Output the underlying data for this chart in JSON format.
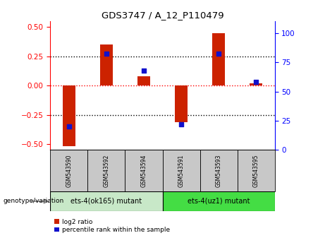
{
  "title": "GDS3747 / A_12_P110479",
  "samples": [
    "GSM543590",
    "GSM543592",
    "GSM543594",
    "GSM543591",
    "GSM543593",
    "GSM543595"
  ],
  "log2_ratio": [
    -0.52,
    0.35,
    0.08,
    -0.31,
    0.45,
    0.02
  ],
  "percentile_rank": [
    20,
    82,
    68,
    22,
    82,
    58
  ],
  "group1_label": "ets-4(ok165) mutant",
  "group2_label": "ets-4(uz1) mutant",
  "bar_color": "#cc2200",
  "dot_color": "#1111cc",
  "ylim_left": [
    -0.55,
    0.55
  ],
  "ylim_right": [
    0,
    110
  ],
  "yticks_left": [
    -0.5,
    -0.25,
    0,
    0.25,
    0.5
  ],
  "yticks_right": [
    0,
    25,
    50,
    75,
    100
  ],
  "sample_box_color": "#c8c8c8",
  "group1_color": "#c8e8c8",
  "group2_color": "#44dd44",
  "bar_width": 0.35,
  "legend_bar_label": "log2 ratio",
  "legend_dot_label": "percentile rank within the sample",
  "genotype_label": "genotype/variation"
}
